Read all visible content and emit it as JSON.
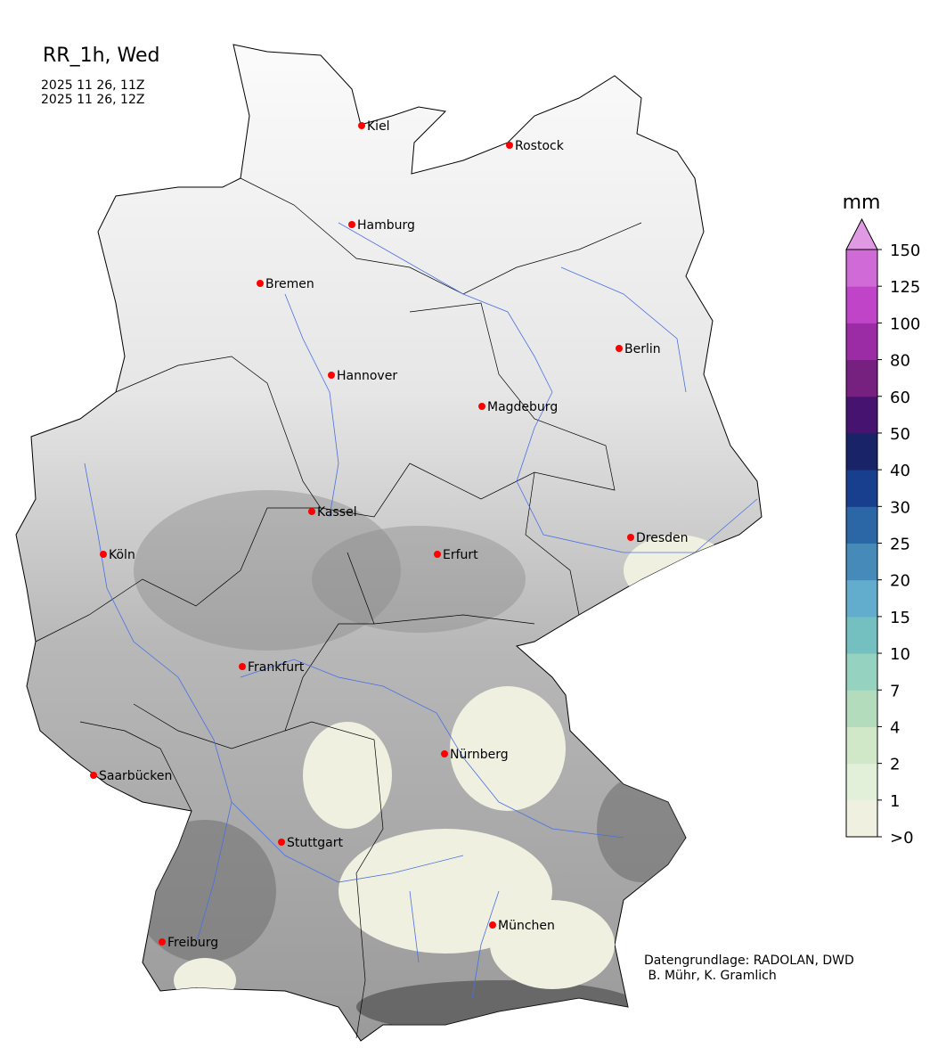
{
  "header": {
    "title": "RR_1h, Wed",
    "valid_from": "2025 11 26, 11Z",
    "valid_to": "2025 11 26, 12Z"
  },
  "map": {
    "region": "Germany",
    "cities": [
      "Kiel",
      "Rostock",
      "Hamburg",
      "Bremen",
      "Berlin",
      "Hannover",
      "Magdeburg",
      "Kassel",
      "Köln",
      "Erfurt",
      "Dresden",
      "Frankfurt",
      "Nürnberg",
      "Saarbücken",
      "Stuttgart",
      "München",
      "Freiburg"
    ],
    "city_marker_color": "#ff0000",
    "river_color": "#4a6fe3",
    "relief_colors": [
      "#f2f2f2",
      "#d0d0d0",
      "#a8a8a8",
      "#707070"
    ]
  },
  "colorbar": {
    "unit": "mm",
    "tick_labels": [
      ">0",
      "1",
      "2",
      "4",
      "7",
      "10",
      "15",
      "20",
      "25",
      "30",
      "40",
      "50",
      "60",
      "80",
      "100",
      "125",
      "150"
    ],
    "colors": [
      "#f0f0e0",
      "#e2efd9",
      "#d1e8c8",
      "#b2dcbc",
      "#96d2c0",
      "#74c0c0",
      "#62acce",
      "#468ab9",
      "#2b66a7",
      "#183f8e",
      "#192468",
      "#461370",
      "#76207f",
      "#9b2ca6",
      "#c044c8",
      "#d06ad6"
    ],
    "extend_color": "#e09ae4"
  },
  "credit": {
    "line1": "Datengrundlage: RADOLAN, DWD",
    "line2": " B. Mühr, K. Gramlich"
  }
}
